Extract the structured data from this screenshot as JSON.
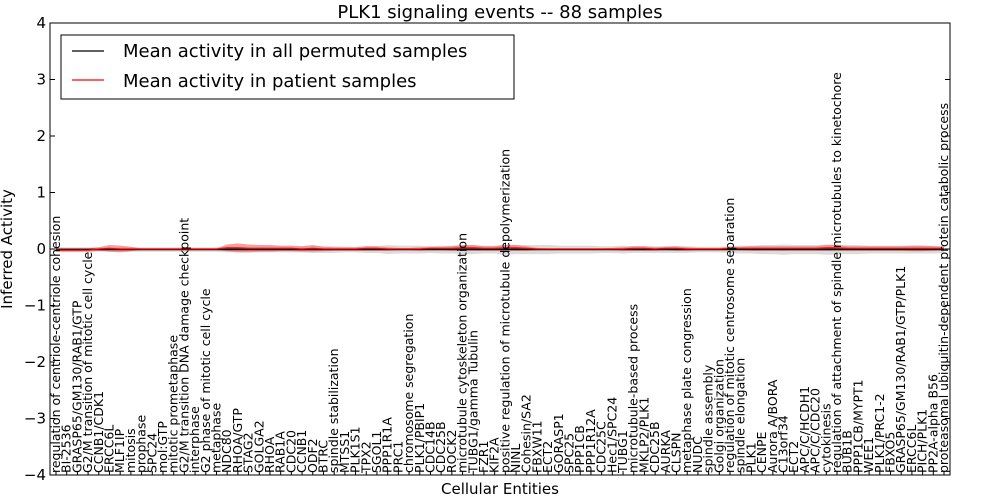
{
  "chart_data": {
    "type": "line",
    "title": "PLK1 signaling events -- 88 samples",
    "xlabel": "Cellular Entities",
    "ylabel": "Inferred Activity",
    "ylim": [
      -4,
      4
    ],
    "yticks": [
      "−4",
      "−3",
      "−2",
      "−1",
      "0",
      "1",
      "2",
      "3",
      "4"
    ],
    "legend": {
      "placement": "top-left",
      "entries": [
        {
          "label": "Mean activity in all permuted samples",
          "color": "#000000"
        },
        {
          "label": "Mean activity in patient samples",
          "color": "#ff0000"
        }
      ]
    },
    "colors": {
      "permuted": "#000000",
      "patient": "#ff0000",
      "permuted_band": "#cccccc",
      "patient_band": "#ee7777"
    },
    "categories": [
      "regulation of centriole-centriole cohesion",
      "BI-2536",
      "GRASP65/GM130/RAB1/GTP",
      "G2/M transition of mitotic cell cycle",
      "CCNB1/CDK1",
      "ERCC6L",
      "MLF1IP",
      "mitosis",
      "prophase",
      "SPC24",
      "mol:GTP",
      "mitotic prometaphase",
      "G2/M transition DNA damage checkpoint",
      "interphase",
      "G2 phase of mitotic cell cycle",
      "metaphase",
      "NDC80",
      "RHOA/GTP",
      "STAG2",
      "GOLGA2",
      "RHOA",
      "RAB1A",
      "CDC20",
      "CCNB1",
      "ODF2",
      "BTRC",
      "spindle stabilization",
      "MTSS1",
      "PLK1S1",
      "TPX2",
      "SGOL1",
      "PPP1R1A",
      "PRC1",
      "chromosome segregation",
      "PLK1/PBIP1",
      "CDC14B",
      "CDC25B",
      "ROCK2",
      "microtubule cytoskeleton organization",
      "TUBG1/gamma Tubulin",
      "FZR1",
      "KIF2A",
      "positive regulation of microtubule depolymerization",
      "NINL",
      "Cohesin/SA2",
      "FBXW11",
      "ECT2",
      "GORASP1",
      "SPC25",
      "PPP1CB",
      "PPP1R12A",
      "CDC25C",
      "Hec1/SPC24",
      "TUBG1",
      "microtubule-based process",
      "MKLP2/PLK1",
      "CDC25B",
      "AURKA",
      "CLSPN",
      "metaphase plate congression",
      "NUDC",
      "spindle assembly",
      "Golgi organization",
      "regulation of mitotic centrosome separation",
      "spindle elongation",
      "PLK1",
      "CENPE",
      "Aurora A/BORA",
      "C13orf34",
      "ECT2",
      "APC/C/HCDH1",
      "APC/C/CDC20",
      "cytokinesis",
      "regulation of attachment of spindle microtubules to kinetochore",
      "BUB1B",
      "PPP1CB/MYPT1",
      "WEE1",
      "PLK1/PRC1-2",
      "FBXO5",
      "GRASP65/GM130/RAB1/GTP/PLK1",
      "ERCC6L",
      "PICH/PLK1",
      "PP2A-alpha B56",
      "proteasomal ubiquitin-dependent protein catabolic process"
    ],
    "series": [
      {
        "name": "Mean activity in all permuted samples",
        "values": [
          -0.01,
          -0.01,
          -0.01,
          -0.01,
          -0.01,
          -0.01,
          -0.01,
          -0.01,
          -0.01,
          -0.01,
          -0.01,
          -0.01,
          -0.01,
          -0.01,
          -0.01,
          -0.01,
          -0.01,
          -0.01,
          -0.01,
          -0.01,
          -0.01,
          -0.01,
          -0.01,
          -0.01,
          -0.01,
          -0.01,
          -0.01,
          -0.01,
          -0.01,
          -0.01,
          -0.01,
          -0.01,
          -0.01,
          -0.01,
          -0.01,
          -0.01,
          -0.01,
          -0.01,
          -0.01,
          -0.01,
          -0.01,
          -0.01,
          -0.01,
          -0.01,
          -0.01,
          -0.01,
          -0.01,
          -0.01,
          -0.01,
          -0.01,
          -0.01,
          -0.01,
          -0.01,
          -0.01,
          -0.01,
          -0.01,
          -0.01,
          -0.01,
          -0.01,
          -0.01,
          -0.01,
          -0.01,
          -0.01,
          -0.01,
          -0.01,
          -0.01,
          -0.01,
          -0.01,
          -0.01,
          -0.01,
          -0.01,
          -0.01,
          -0.01,
          -0.01,
          -0.01,
          -0.01,
          -0.01,
          -0.01,
          -0.01,
          -0.01,
          -0.01,
          -0.01,
          -0.01,
          -0.01
        ],
        "band": [
          0.04,
          0.04,
          0.04,
          0.04,
          0.04,
          0.04,
          0.04,
          0.04,
          0.04,
          0.04,
          0.04,
          0.04,
          0.04,
          0.04,
          0.04,
          0.04,
          0.05,
          0.05,
          0.05,
          0.05,
          0.05,
          0.05,
          0.05,
          0.05,
          0.06,
          0.06,
          0.06,
          0.05,
          0.05,
          0.06,
          0.06,
          0.08,
          0.07,
          0.07,
          0.07,
          0.06,
          0.07,
          0.07,
          0.08,
          0.08,
          0.07,
          0.07,
          0.09,
          0.08,
          0.08,
          0.08,
          0.08,
          0.07,
          0.07,
          0.07,
          0.07,
          0.06,
          0.06,
          0.07,
          0.06,
          0.06,
          0.06,
          0.06,
          0.06,
          0.06,
          0.05,
          0.05,
          0.05,
          0.06,
          0.07,
          0.07,
          0.08,
          0.08,
          0.09,
          0.08,
          0.08,
          0.08,
          0.09,
          0.09,
          0.08,
          0.08,
          0.07,
          0.07,
          0.07,
          0.07,
          0.07,
          0.07,
          0.07,
          0.06
        ]
      },
      {
        "name": "Mean activity in patient samples",
        "values": [
          -0.02,
          -0.02,
          -0.02,
          -0.02,
          0.0,
          0.01,
          0.0,
          0.0,
          0.0,
          0.0,
          0.0,
          0.0,
          0.0,
          0.0,
          0.0,
          0.0,
          0.02,
          0.02,
          0.01,
          0.01,
          0.01,
          0.01,
          0.01,
          0.0,
          0.01,
          0.0,
          0.0,
          0.0,
          0.0,
          0.01,
          0.01,
          0.0,
          0.0,
          0.0,
          0.0,
          0.01,
          0.01,
          0.01,
          0.02,
          0.02,
          0.01,
          0.01,
          0.02,
          0.02,
          0.01,
          0.0,
          0.0,
          0.0,
          0.0,
          0.0,
          0.0,
          0.0,
          0.0,
          0.0,
          0.01,
          0.01,
          0.0,
          0.01,
          0.01,
          0.0,
          0.0,
          0.0,
          0.0,
          0.01,
          0.01,
          0.01,
          0.01,
          0.01,
          0.01,
          0.01,
          0.01,
          0.01,
          0.02,
          0.02,
          0.01,
          0.01,
          0.01,
          0.01,
          0.01,
          0.01,
          0.01,
          0.01,
          0.01,
          0.01
        ],
        "band": [
          0.03,
          0.03,
          0.03,
          0.03,
          0.03,
          0.06,
          0.06,
          0.04,
          0.01,
          0.01,
          0.01,
          0.01,
          0.01,
          0.01,
          0.01,
          0.01,
          0.06,
          0.08,
          0.07,
          0.06,
          0.06,
          0.05,
          0.05,
          0.05,
          0.06,
          0.04,
          0.03,
          0.03,
          0.03,
          0.04,
          0.04,
          0.03,
          0.02,
          0.02,
          0.03,
          0.03,
          0.03,
          0.04,
          0.05,
          0.05,
          0.04,
          0.04,
          0.05,
          0.05,
          0.04,
          0.02,
          0.01,
          0.01,
          0.01,
          0.01,
          0.01,
          0.01,
          0.02,
          0.03,
          0.04,
          0.04,
          0.03,
          0.03,
          0.04,
          0.03,
          0.02,
          0.02,
          0.02,
          0.03,
          0.03,
          0.04,
          0.04,
          0.04,
          0.04,
          0.04,
          0.04,
          0.04,
          0.05,
          0.05,
          0.04,
          0.04,
          0.04,
          0.04,
          0.04,
          0.04,
          0.05,
          0.05,
          0.04,
          0.03
        ]
      }
    ]
  }
}
